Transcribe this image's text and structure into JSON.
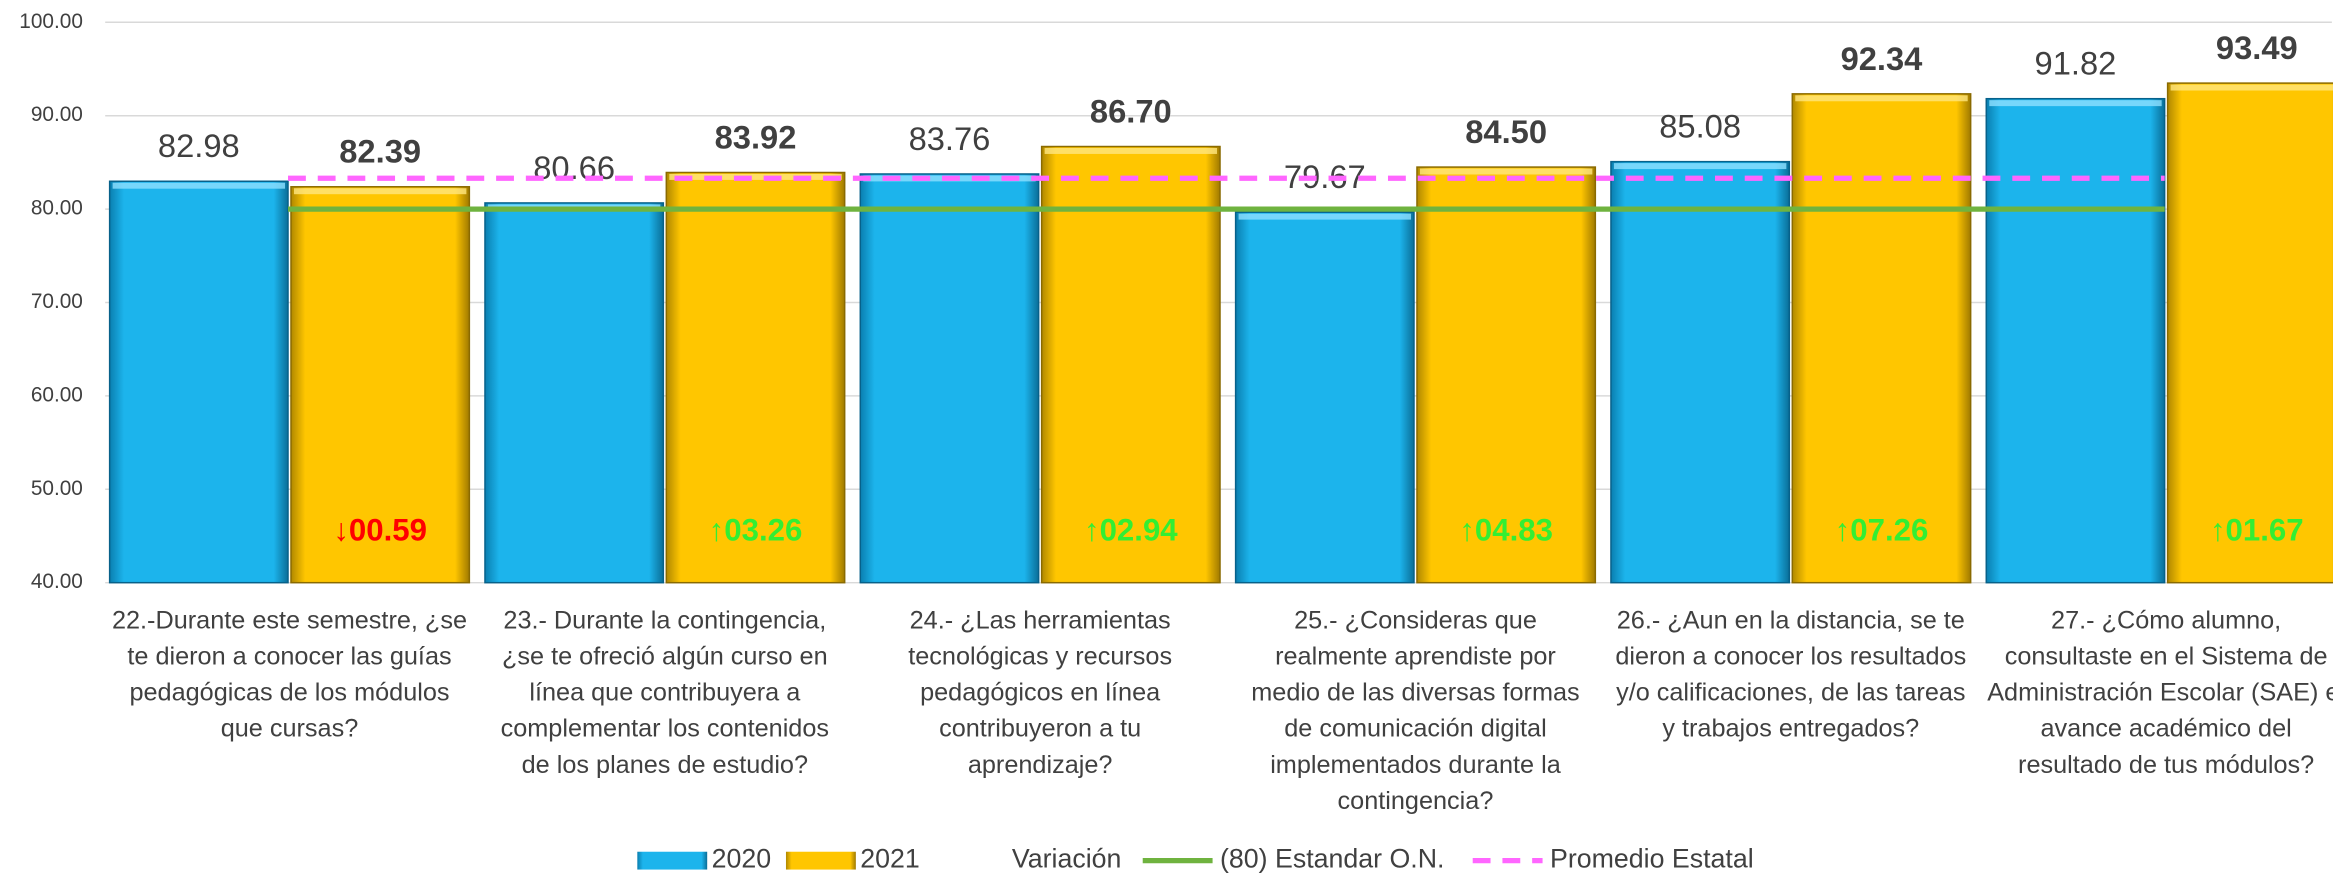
{
  "chart_data": {
    "type": "bar",
    "categories": [
      [
        "22.-Durante este semestre, ¿se",
        "te dieron a conocer las guías",
        "pedagógicas de los módulos",
        "que cursas?"
      ],
      [
        "23.- Durante la contingencia,",
        "¿se te ofreció algún curso en",
        "línea que contribuyera a",
        "complementar los contenidos",
        "de los planes de estudio?"
      ],
      [
        "24.- ¿Las herramientas",
        "tecnológicas y recursos",
        "pedagógicos en línea",
        "contribuyeron a tu",
        "aprendizaje?"
      ],
      [
        "25.- ¿Consideras que",
        "realmente aprendiste por",
        "medio de las diversas formas",
        "de comunicación digital",
        "implementados durante la",
        "contingencia?"
      ],
      [
        "26.- ¿Aun en la distancia, se te",
        "dieron a conocer los resultados",
        "y/o calificaciones, de las tareas",
        "y trabajos entregados?"
      ],
      [
        "27.- ¿Cómo alumno,",
        "consultaste en el Sistema de",
        "Administración Escolar (SAE) el",
        "avance académico del",
        "resultado de tus módulos?"
      ]
    ],
    "series": [
      {
        "name": "2020",
        "color": "#1cb4ec",
        "values": [
          82.98,
          80.66,
          83.76,
          79.67,
          85.08,
          91.82
        ],
        "value_labels": [
          "82.98",
          "80.66",
          "83.76",
          "79.67",
          "85.08",
          "91.82"
        ]
      },
      {
        "name": "2021",
        "color": "#ffc600",
        "values": [
          82.39,
          83.92,
          86.7,
          84.5,
          92.34,
          93.49
        ],
        "value_labels": [
          "82.39",
          "83.92",
          "86.70",
          "84.50",
          "92.34",
          "93.49"
        ]
      }
    ],
    "variation": {
      "name": "Variación",
      "labels": [
        "↓00.59",
        "↑03.26",
        "↑02.94",
        "↑04.83",
        "↑07.26",
        "↑01.67"
      ],
      "colors": [
        "#ff0000",
        "#33ee33",
        "#33ee33",
        "#33ee33",
        "#33ee33",
        "#33ee33"
      ]
    },
    "reference_lines": [
      {
        "name": "(80) Estandar O.N.",
        "value": 80,
        "color": "#6fb33f",
        "dashed": false
      },
      {
        "name": "Promedio  Estatal",
        "value": 83.3,
        "color": "#ff66ff",
        "dashed": true
      }
    ],
    "ylim": [
      40,
      100
    ],
    "yticks": [
      {
        "value": 40,
        "label": "40.00"
      },
      {
        "value": 50,
        "label": "50.00"
      },
      {
        "value": 60,
        "label": "60.00"
      },
      {
        "value": 70,
        "label": "70.00"
      },
      {
        "value": 80,
        "label": "80.00"
      },
      {
        "value": 90,
        "label": "90.00"
      },
      {
        "value": 100,
        "label": "100.00"
      }
    ],
    "grid": true
  }
}
